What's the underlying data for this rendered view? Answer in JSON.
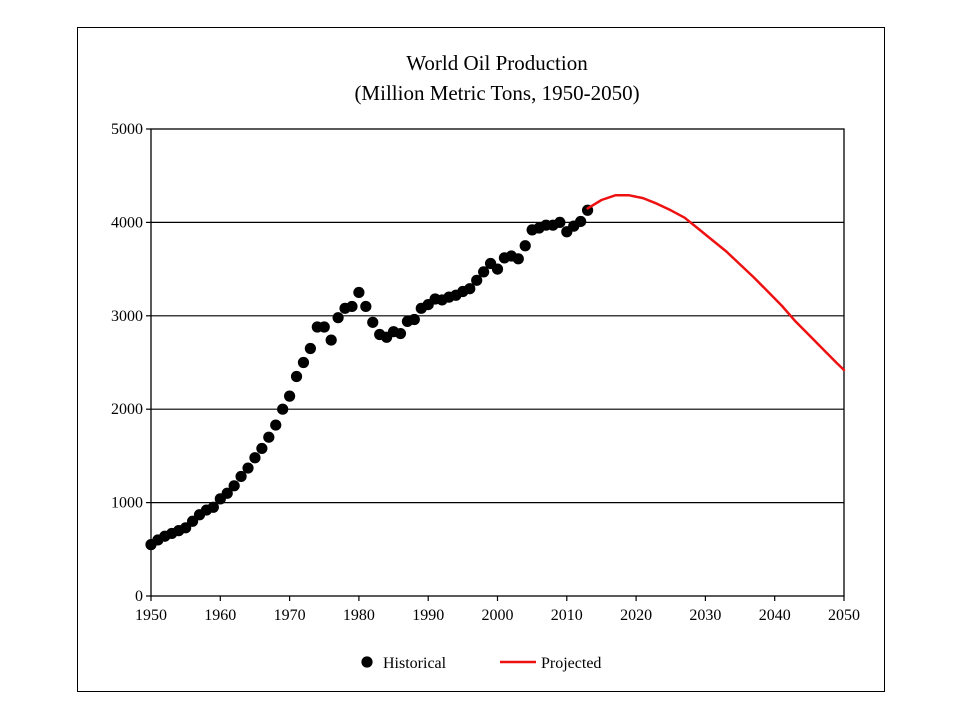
{
  "chart_data": {
    "type": "scatter",
    "title": "World Oil Production",
    "subtitle": "(Million  Metric Tons, 1950-2050)",
    "xlabel": "",
    "ylabel": "",
    "xlim": [
      1950,
      2050
    ],
    "ylim": [
      0,
      5000
    ],
    "x_ticks": [
      1950,
      1960,
      1970,
      1980,
      1990,
      2000,
      2010,
      2020,
      2030,
      2040,
      2050
    ],
    "y_ticks": [
      0,
      1000,
      2000,
      3000,
      4000,
      5000
    ],
    "grid": "horizontal",
    "legend_position": "bottom",
    "colors": {
      "historical": "#000000",
      "projected": "#ee1111"
    },
    "series": [
      {
        "name": "Historical",
        "kind": "scatter",
        "x": [
          1950,
          1951,
          1952,
          1953,
          1954,
          1955,
          1956,
          1957,
          1958,
          1959,
          1960,
          1961,
          1962,
          1963,
          1964,
          1965,
          1966,
          1967,
          1968,
          1969,
          1970,
          1971,
          1972,
          1973,
          1974,
          1975,
          1976,
          1977,
          1978,
          1979,
          1980,
          1981,
          1982,
          1983,
          1984,
          1985,
          1986,
          1987,
          1988,
          1989,
          1990,
          1991,
          1992,
          1993,
          1994,
          1995,
          1996,
          1997,
          1998,
          1999,
          2000,
          2001,
          2002,
          2003,
          2004,
          2005,
          2006,
          2007,
          2008,
          2009,
          2010,
          2011,
          2012,
          2013
        ],
        "y": [
          550,
          600,
          640,
          670,
          700,
          730,
          800,
          870,
          920,
          950,
          1040,
          1100,
          1180,
          1280,
          1370,
          1480,
          1580,
          1700,
          1830,
          2000,
          2140,
          2350,
          2500,
          2650,
          2880,
          2880,
          2740,
          2980,
          3080,
          3100,
          3250,
          3100,
          2930,
          2800,
          2770,
          2830,
          2810,
          2940,
          2960,
          3080,
          3120,
          3180,
          3170,
          3200,
          3220,
          3260,
          3290,
          3380,
          3470,
          3560,
          3500,
          3620,
          3640,
          3610,
          3750,
          3920,
          3940,
          3970,
          3970,
          4000,
          3900,
          3960,
          4010,
          4130
        ]
      },
      {
        "name": "Projected",
        "kind": "line",
        "x": [
          2013,
          2015,
          2017,
          2019,
          2021,
          2023,
          2025,
          2027,
          2029,
          2031,
          2033,
          2035,
          2037,
          2039,
          2041,
          2043,
          2045,
          2047,
          2049,
          2050
        ],
        "y": [
          4150,
          4240,
          4290,
          4290,
          4260,
          4200,
          4130,
          4050,
          3930,
          3810,
          3690,
          3550,
          3410,
          3260,
          3110,
          2940,
          2790,
          2640,
          2490,
          2420
        ]
      }
    ]
  }
}
